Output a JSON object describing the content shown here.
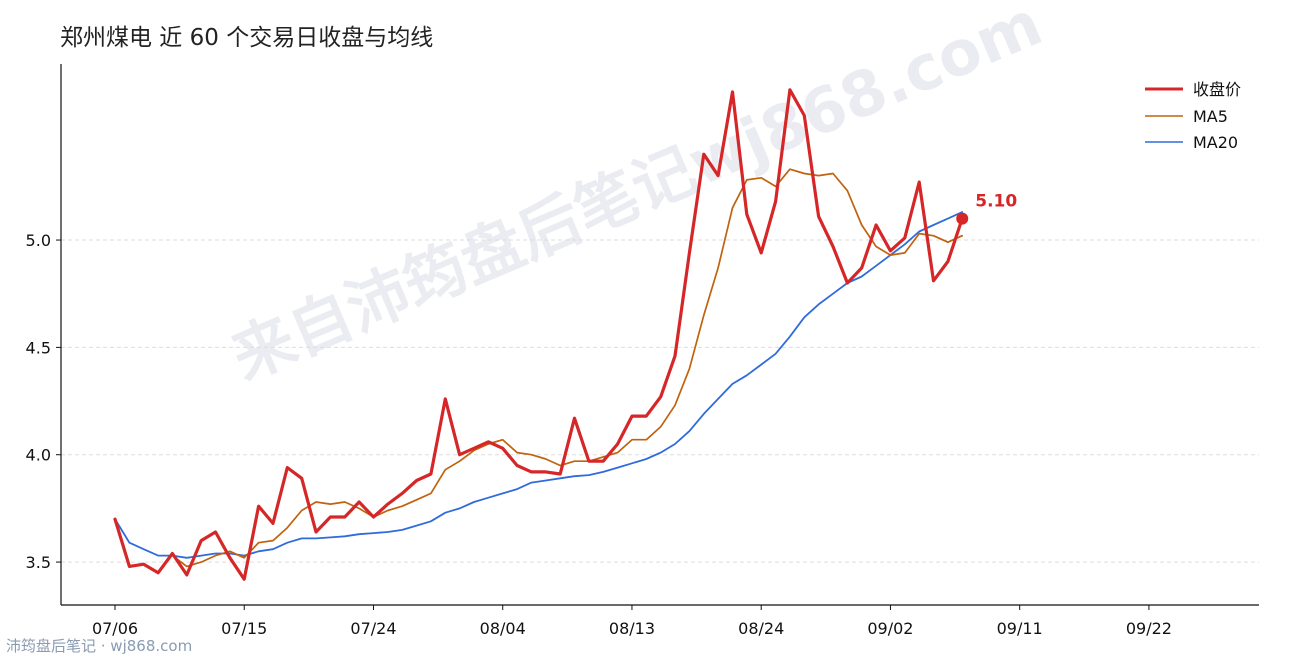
{
  "title": "郑州煤电 近 60 个交易日收盘与均线",
  "watermark": "来自沛筠盘后笔记wj868.com",
  "footer": "沛筠盘后笔记 · wj868.com",
  "colors": {
    "close": "#d62728",
    "ma5": "#c0620e",
    "ma20": "#2f6bdc",
    "grid": "#dddddd"
  },
  "chart_data": {
    "type": "line",
    "title": "郑州煤电 近 60 个交易日收盘与均线",
    "xlabel": "",
    "ylabel": "",
    "ylim": [
      3.3,
      5.82
    ],
    "yticks": [
      3.5,
      4.0,
      4.5,
      5.0
    ],
    "ytick_labels": [
      "3.5",
      "4.0",
      "4.5",
      "5.0"
    ],
    "xtick_labels": [
      "07/06",
      "07/15",
      "07/24",
      "08/04",
      "08/13",
      "08/24",
      "09/02",
      "09/11",
      "09/22"
    ],
    "xtick_index": [
      0,
      9,
      18,
      27,
      36,
      45,
      54,
      63,
      72
    ],
    "grid": "horizontal dashed",
    "legend_position": "top-right",
    "last_label": "5.10",
    "series": [
      {
        "name": "收盘价",
        "values": [
          3.7,
          3.48,
          3.49,
          3.45,
          3.54,
          3.44,
          3.6,
          3.64,
          3.52,
          3.42,
          3.76,
          3.68,
          3.94,
          3.89,
          3.64,
          3.71,
          3.71,
          3.78,
          3.71,
          3.77,
          3.82,
          3.88,
          3.91,
          4.26,
          4.0,
          4.03,
          4.06,
          4.03,
          3.95,
          3.92,
          3.92,
          3.91,
          4.17,
          3.97,
          3.97,
          4.05,
          4.18,
          4.18,
          4.27,
          4.46,
          4.94,
          5.4,
          5.3,
          5.69,
          5.12,
          4.94,
          5.18,
          5.7,
          5.58,
          5.11,
          4.97,
          4.8,
          4.87,
          5.07,
          4.95,
          5.01,
          5.27,
          4.81,
          4.9,
          5.1
        ]
      },
      {
        "name": "MA5",
        "values": [
          null,
          null,
          null,
          null,
          3.53,
          3.48,
          3.5,
          3.53,
          3.55,
          3.52,
          3.59,
          3.6,
          3.66,
          3.74,
          3.78,
          3.77,
          3.78,
          3.75,
          3.71,
          3.74,
          3.76,
          3.79,
          3.82,
          3.93,
          3.97,
          4.02,
          4.05,
          4.07,
          4.01,
          4.0,
          3.98,
          3.95,
          3.97,
          3.97,
          3.99,
          4.01,
          4.07,
          4.07,
          4.13,
          4.23,
          4.4,
          4.65,
          4.87,
          5.15,
          5.28,
          5.29,
          5.25,
          5.33,
          5.31,
          5.3,
          5.31,
          5.23,
          5.07,
          4.97,
          4.93,
          4.94,
          5.03,
          5.02,
          4.99,
          5.02
        ]
      },
      {
        "name": "MA20",
        "values": [
          3.7,
          3.59,
          3.56,
          3.53,
          3.53,
          3.52,
          3.53,
          3.54,
          3.54,
          3.53,
          3.55,
          3.56,
          3.59,
          3.61,
          3.61,
          3.615,
          3.62,
          3.63,
          3.635,
          3.64,
          3.65,
          3.67,
          3.69,
          3.73,
          3.75,
          3.78,
          3.8,
          3.82,
          3.84,
          3.87,
          3.88,
          3.89,
          3.9,
          3.905,
          3.92,
          3.94,
          3.96,
          3.98,
          4.01,
          4.05,
          4.11,
          4.19,
          4.26,
          4.33,
          4.37,
          4.42,
          4.47,
          4.55,
          4.64,
          4.7,
          4.75,
          4.8,
          4.83,
          4.88,
          4.93,
          4.98,
          5.04,
          5.07,
          5.1,
          5.13
        ]
      }
    ]
  }
}
